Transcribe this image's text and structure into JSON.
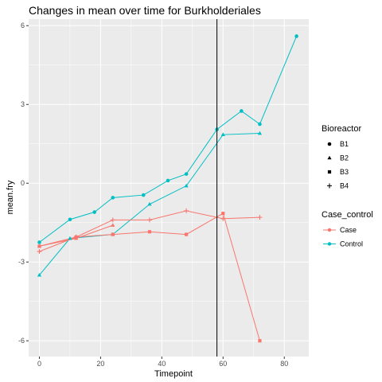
{
  "chart_data": {
    "type": "line",
    "title": "Changes in mean over time for  Burkholderiales",
    "xlabel": "Timepoint",
    "ylabel": "mean.fry",
    "xlim": [
      -3.5,
      88
    ],
    "ylim": [
      -6.6,
      6.25
    ],
    "x_ticks": [
      0,
      20,
      40,
      60,
      80
    ],
    "y_ticks": [
      -6,
      -3,
      0,
      3,
      6
    ],
    "x_tick_labels": [
      "0",
      "20",
      "40",
      "60",
      "80"
    ],
    "y_tick_labels": [
      "-6",
      "-3",
      "0",
      "3",
      "6"
    ],
    "vline_x": 58,
    "grid": true,
    "panel_background": "#ebebeb",
    "legend_placement": "right",
    "legends": {
      "shape": {
        "title": "Bioreactor",
        "items": [
          "B1",
          "B2",
          "B3",
          "B4"
        ]
      },
      "color": {
        "title": "Case_control",
        "items": [
          {
            "label": "Case",
            "color": "#F8766D"
          },
          {
            "label": "Control",
            "color": "#00BFC4"
          }
        ]
      }
    },
    "series": [
      {
        "group": "Control",
        "bioreactor": "B1",
        "shape": "circle",
        "color": "#00BFC4",
        "x": [
          0,
          10,
          18,
          24,
          34,
          42,
          48,
          58,
          66,
          72,
          84
        ],
        "y": [
          -2.25,
          -1.38,
          -1.1,
          -0.55,
          -0.45,
          0.1,
          0.35,
          2.05,
          2.75,
          2.25,
          5.6
        ]
      },
      {
        "group": "Control",
        "bioreactor": "B2",
        "shape": "triangle",
        "color": "#00BFC4",
        "x": [
          0,
          10,
          24,
          36,
          48,
          60,
          72
        ],
        "y": [
          -3.5,
          -2.1,
          -1.95,
          -0.8,
          -0.1,
          1.85,
          1.9
        ]
      },
      {
        "group": "Case",
        "bioreactor": "B2",
        "shape": "triangle",
        "color": "#F8766D",
        "x": [
          0,
          12,
          24
        ],
        "y": [
          -2.4,
          -2.1,
          -1.6
        ]
      },
      {
        "group": "Case",
        "bioreactor": "B3",
        "shape": "square",
        "color": "#F8766D",
        "x": [
          0,
          12,
          24,
          36,
          48,
          60,
          72
        ],
        "y": [
          -2.4,
          -2.05,
          -1.95,
          -1.85,
          -1.95,
          -1.15,
          -6.0
        ]
      },
      {
        "group": "Case",
        "bioreactor": "B4",
        "shape": "plus",
        "color": "#F8766D",
        "x": [
          0,
          12,
          24,
          36,
          48,
          60,
          72
        ],
        "y": [
          -2.6,
          -2.05,
          -1.4,
          -1.4,
          -1.05,
          -1.35,
          -1.3
        ]
      }
    ]
  }
}
